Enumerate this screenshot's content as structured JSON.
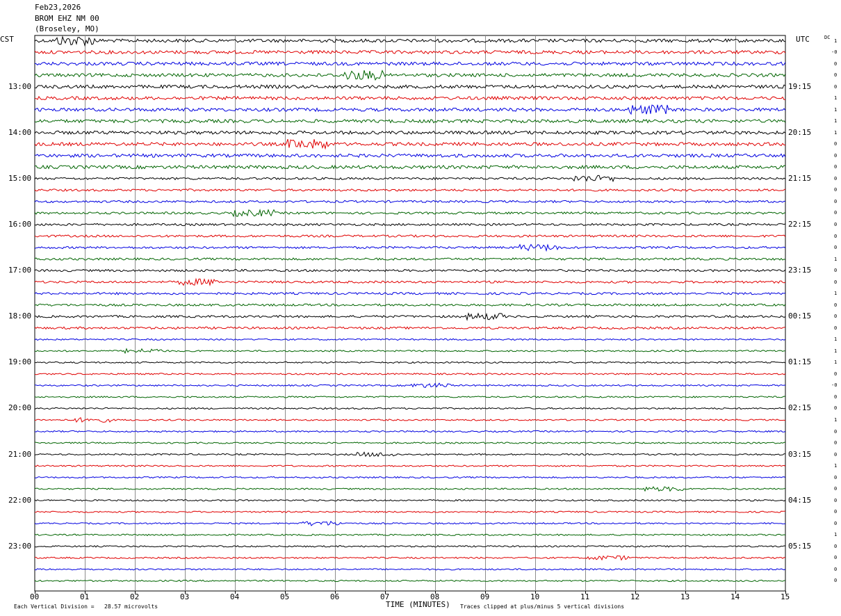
{
  "header": {
    "date": "Feb23,2026",
    "station": "BROM EHZ NM 00",
    "location": "(Broseley, MO)"
  },
  "left_timezone": "CST",
  "right_timezone": "UTC",
  "dc_label": "DC",
  "chart_data": {
    "type": "line",
    "title": "BROM EHZ NM 00 (Broseley, MO)",
    "xlabel": "TIME (MINUTES)",
    "x_ticks": [
      "00",
      "01",
      "02",
      "03",
      "04",
      "05",
      "06",
      "07",
      "08",
      "09",
      "10",
      "11",
      "12",
      "13",
      "14",
      "15"
    ],
    "xlim": [
      0,
      15
    ],
    "minutes_per_line": 15,
    "trace_count": 48,
    "trace_colors": [
      "#000000",
      "#e00000",
      "#0000e0",
      "#006400"
    ],
    "left_hour_labels": [
      "13:00",
      "14:00",
      "15:00",
      "16:00",
      "17:00",
      "18:00",
      "19:00",
      "20:00",
      "21:00",
      "22:00",
      "23:00"
    ],
    "right_hour_labels": [
      "19:15",
      "20:15",
      "21:15",
      "22:15",
      "23:15",
      "00:15",
      "01:15",
      "02:15",
      "03:15",
      "04:15",
      "05:15"
    ],
    "dc_offsets": [
      "1",
      "-0",
      "0",
      "0",
      "0",
      "1",
      "1",
      "1",
      "1",
      "0",
      "0",
      "0",
      "0",
      "0",
      "0",
      "0",
      "0",
      "0",
      "0",
      "1",
      "0",
      "0",
      "1",
      "0",
      "0",
      "0",
      "1",
      "1",
      "1",
      "0",
      "-0",
      "0",
      "0",
      "1",
      "0",
      "0",
      "0",
      "1",
      "0",
      "0",
      "0",
      "0",
      "0",
      "1",
      "0",
      "0",
      "0",
      "0"
    ],
    "vertical_scale": "Each Vertical Division =   28.57 microvolts",
    "clip_note": "Traces clipped at plus/minus 5 vertical divisions",
    "grid": true
  }
}
